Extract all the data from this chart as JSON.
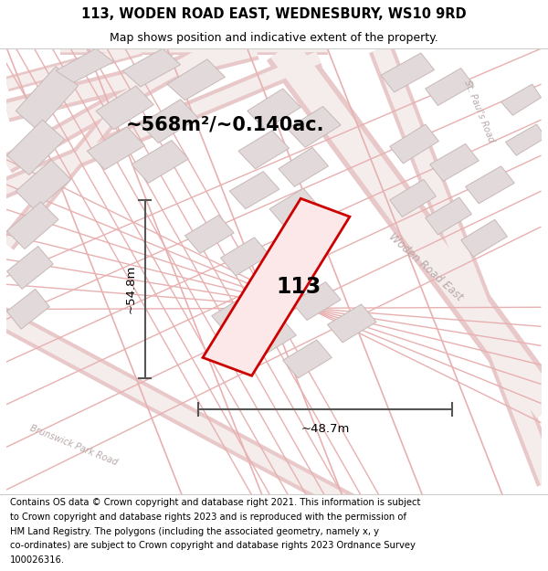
{
  "title_line1": "113, WODEN ROAD EAST, WEDNESBURY, WS10 9RD",
  "title_line2": "Map shows position and indicative extent of the property.",
  "area_label": "~568m²/~0.140ac.",
  "width_label": "~48.7m",
  "height_label": "~54.8m",
  "property_number": "113",
  "footer_lines": [
    "Contains OS data © Crown copyright and database right 2021. This information is subject",
    "to Crown copyright and database rights 2023 and is reproduced with the permission of",
    "HM Land Registry. The polygons (including the associated geometry, namely x, y",
    "co-ordinates) are subject to Crown copyright and database rights 2023 Ordnance Survey",
    "100026316."
  ],
  "map_bg": "#f7f3f3",
  "road_outline": "#e8c8c8",
  "road_fill": "#f5edec",
  "building_fill": "#e2dada",
  "building_edge": "#c8b8b8",
  "property_fill": "#fce8e8",
  "property_stroke": "#cc0000",
  "dim_color": "#555555",
  "road_label_color": "#b8a8a8",
  "title_fontsize": 10.5,
  "subtitle_fontsize": 9,
  "area_fontsize": 15,
  "dim_fontsize": 9.5,
  "number_fontsize": 17,
  "footer_fontsize": 7.2
}
